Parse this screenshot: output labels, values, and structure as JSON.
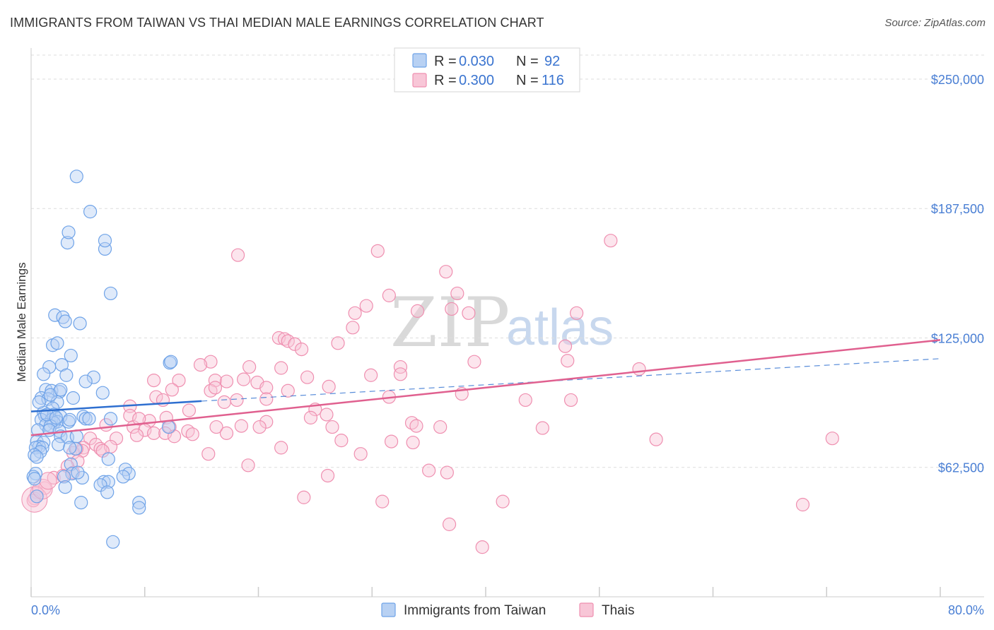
{
  "title": "IMMIGRANTS FROM TAIWAN VS THAI MEDIAN MALE EARNINGS CORRELATION CHART",
  "source": "Source: ZipAtlas.com",
  "watermark": {
    "zip": "ZIP",
    "atlas": "atlas"
  },
  "colors": {
    "taiwan": "#6fa3e8",
    "taiwan_fill": "#b8d1f3",
    "taiwan_line": "#2e6fd0",
    "thai": "#ef8fb0",
    "thai_fill": "#f8c6d7",
    "thai_line": "#e0608f",
    "tick_text": "#4a7fd4",
    "grid": "#dddddd"
  },
  "legend": {
    "r_label": "R =",
    "n_label": "N =",
    "rows": [
      {
        "series": "taiwan",
        "r": "0.030",
        "n": "92"
      },
      {
        "series": "thai",
        "r": "0.300",
        "n": "116"
      }
    ]
  },
  "chart_data": {
    "type": "scatter",
    "title": "IMMIGRANTS FROM TAIWAN VS THAI MEDIAN MALE EARNINGS CORRELATION CHART",
    "xlabel": "",
    "ylabel": "Median Male Earnings",
    "xlim": [
      0,
      80
    ],
    "ylim": [
      0,
      265000
    ],
    "x_tick_labels": [
      "0.0%",
      "80.0%"
    ],
    "y_ticks": [
      62500,
      125000,
      187500,
      250000
    ],
    "y_tick_labels": [
      "$62,500",
      "$125,000",
      "$187,500",
      "$250,000"
    ],
    "grid": true,
    "legend_position": "top-center",
    "series": [
      {
        "name": "Immigrants from Taiwan",
        "key": "taiwan",
        "r": 0.03,
        "n": 92,
        "trend": {
          "x0": 0,
          "y0": 89500,
          "x1": 15,
          "y1": 94500,
          "dashed_to_x": 80,
          "dashed_to_y": 115000
        },
        "points": [
          [
            4.0,
            203000
          ],
          [
            5.2,
            186000
          ],
          [
            3.2,
            171000
          ],
          [
            6.5,
            168000
          ],
          [
            6.5,
            172000
          ],
          [
            3.3,
            176000
          ],
          [
            7.0,
            146500
          ],
          [
            2.1,
            136000
          ],
          [
            2.8,
            135000
          ],
          [
            4.3,
            132000
          ],
          [
            3.0,
            133000
          ],
          [
            1.9,
            121500
          ],
          [
            2.3,
            122500
          ],
          [
            12.2,
            113000
          ],
          [
            12.3,
            113500
          ],
          [
            3.5,
            116500
          ],
          [
            1.6,
            111000
          ],
          [
            2.7,
            112000
          ],
          [
            1.1,
            107500
          ],
          [
            3.1,
            107000
          ],
          [
            5.5,
            106000
          ],
          [
            4.8,
            104000
          ],
          [
            1.3,
            100000
          ],
          [
            1.8,
            99500
          ],
          [
            2.5,
            99000
          ],
          [
            6.3,
            98500
          ],
          [
            0.9,
            96000
          ],
          [
            1.5,
            95500
          ],
          [
            3.7,
            96000
          ],
          [
            2.3,
            94000
          ],
          [
            1.9,
            91000
          ],
          [
            1.1,
            89000
          ],
          [
            1.2,
            87500
          ],
          [
            2.0,
            88000
          ],
          [
            2.6,
            87000
          ],
          [
            4.6,
            87000
          ],
          [
            4.8,
            86000
          ],
          [
            0.9,
            85500
          ],
          [
            1.8,
            85500
          ],
          [
            2.3,
            84500
          ],
          [
            3.3,
            84500
          ],
          [
            3.4,
            85500
          ],
          [
            2.0,
            84000
          ],
          [
            1.3,
            83000
          ],
          [
            1.7,
            82500
          ],
          [
            0.6,
            80500
          ],
          [
            1.6,
            80500
          ],
          [
            2.5,
            80000
          ],
          [
            12.1,
            82000
          ],
          [
            2.6,
            77500
          ],
          [
            3.2,
            77000
          ],
          [
            4.0,
            77500
          ],
          [
            0.5,
            75000
          ],
          [
            1.1,
            74500
          ],
          [
            2.4,
            73500
          ],
          [
            0.7,
            72500
          ],
          [
            0.4,
            72000
          ],
          [
            1.0,
            72000
          ],
          [
            3.9,
            71500
          ],
          [
            0.8,
            70000
          ],
          [
            0.3,
            68500
          ],
          [
            0.5,
            67500
          ],
          [
            3.5,
            64000
          ],
          [
            6.8,
            66500
          ],
          [
            0.4,
            59500
          ],
          [
            8.3,
            61500
          ],
          [
            3.6,
            59500
          ],
          [
            8.6,
            59500
          ],
          [
            0.2,
            58000
          ],
          [
            0.3,
            57000
          ],
          [
            2.9,
            58000
          ],
          [
            8.1,
            58000
          ],
          [
            4.5,
            57500
          ],
          [
            6.4,
            55500
          ],
          [
            6.8,
            55500
          ],
          [
            6.1,
            54000
          ],
          [
            3.0,
            53000
          ],
          [
            6.7,
            50500
          ],
          [
            9.5,
            45500
          ],
          [
            9.5,
            43000
          ],
          [
            4.4,
            45500
          ],
          [
            7.2,
            26500
          ],
          [
            0.5,
            48500
          ],
          [
            1.4,
            88000
          ],
          [
            2.2,
            86500
          ],
          [
            3.4,
            72000
          ],
          [
            5.1,
            86000
          ],
          [
            1.7,
            97500
          ],
          [
            2.6,
            100000
          ],
          [
            0.7,
            94000
          ],
          [
            4.1,
            60000
          ],
          [
            7.0,
            86000
          ]
        ]
      },
      {
        "name": "Thais",
        "key": "thai",
        "r": 0.3,
        "n": 116,
        "trend": {
          "x0": 0,
          "y0": 78000,
          "x1": 80,
          "y1": 124000
        },
        "points": [
          [
            51.0,
            172000
          ],
          [
            18.2,
            165000
          ],
          [
            30.5,
            167000
          ],
          [
            36.5,
            157000
          ],
          [
            37.5,
            146500
          ],
          [
            31.5,
            145500
          ],
          [
            29.5,
            140500
          ],
          [
            28.5,
            137000
          ],
          [
            37.0,
            139000
          ],
          [
            34.0,
            138000
          ],
          [
            48.0,
            137000
          ],
          [
            38.5,
            137000
          ],
          [
            28.3,
            130000
          ],
          [
            21.8,
            125000
          ],
          [
            22.3,
            124500
          ],
          [
            22.6,
            123500
          ],
          [
            27.0,
            122500
          ],
          [
            23.2,
            122000
          ],
          [
            47.0,
            121000
          ],
          [
            23.8,
            119500
          ],
          [
            47.2,
            114000
          ],
          [
            39.0,
            113500
          ],
          [
            15.8,
            113500
          ],
          [
            14.9,
            112000
          ],
          [
            19.2,
            111000
          ],
          [
            22.0,
            110500
          ],
          [
            32.5,
            111000
          ],
          [
            53.5,
            110000
          ],
          [
            10.8,
            104500
          ],
          [
            13.0,
            104500
          ],
          [
            16.2,
            104500
          ],
          [
            17.2,
            104000
          ],
          [
            18.7,
            105000
          ],
          [
            19.9,
            103500
          ],
          [
            20.7,
            101000
          ],
          [
            24.3,
            106000
          ],
          [
            29.9,
            107000
          ],
          [
            32.5,
            107500
          ],
          [
            12.4,
            100000
          ],
          [
            15.8,
            99500
          ],
          [
            16.2,
            101000
          ],
          [
            22.6,
            99500
          ],
          [
            26.2,
            101500
          ],
          [
            37.9,
            98000
          ],
          [
            11.0,
            96500
          ],
          [
            11.6,
            95000
          ],
          [
            17.0,
            94000
          ],
          [
            18.1,
            95000
          ],
          [
            20.7,
            95500
          ],
          [
            31.5,
            96500
          ],
          [
            43.5,
            95000
          ],
          [
            47.5,
            95000
          ],
          [
            8.7,
            92000
          ],
          [
            13.9,
            90000
          ],
          [
            25.0,
            90500
          ],
          [
            26.0,
            88000
          ],
          [
            8.7,
            87500
          ],
          [
            11.9,
            86500
          ],
          [
            24.6,
            86500
          ],
          [
            10.4,
            85000
          ],
          [
            20.7,
            84500
          ],
          [
            33.5,
            84000
          ],
          [
            6.6,
            83000
          ],
          [
            9.0,
            82000
          ],
          [
            12.2,
            82000
          ],
          [
            13.8,
            80000
          ],
          [
            16.3,
            82000
          ],
          [
            18.5,
            82500
          ],
          [
            20.1,
            82000
          ],
          [
            26.5,
            82000
          ],
          [
            33.9,
            82500
          ],
          [
            36.0,
            82000
          ],
          [
            45.0,
            81500
          ],
          [
            10.0,
            80500
          ],
          [
            10.8,
            79000
          ],
          [
            11.8,
            79000
          ],
          [
            9.3,
            78000
          ],
          [
            14.2,
            78500
          ],
          [
            17.2,
            79000
          ],
          [
            5.2,
            76500
          ],
          [
            7.5,
            76500
          ],
          [
            12.6,
            77500
          ],
          [
            27.3,
            75500
          ],
          [
            31.7,
            75000
          ],
          [
            33.6,
            74500
          ],
          [
            55.0,
            76000
          ],
          [
            70.5,
            76500
          ],
          [
            5.7,
            73500
          ],
          [
            6.1,
            71500
          ],
          [
            7.0,
            72500
          ],
          [
            4.6,
            72000
          ],
          [
            4.5,
            70500
          ],
          [
            3.7,
            69500
          ],
          [
            4.0,
            71500
          ],
          [
            15.6,
            69000
          ],
          [
            29.0,
            69000
          ],
          [
            4.1,
            65500
          ],
          [
            19.1,
            63500
          ],
          [
            3.2,
            63000
          ],
          [
            3.7,
            60000
          ],
          [
            2.0,
            57500
          ],
          [
            35.0,
            61000
          ],
          [
            36.6,
            60000
          ],
          [
            26.1,
            58500
          ],
          [
            1.2,
            52500
          ],
          [
            0.5,
            50500
          ],
          [
            0.3,
            47500
          ],
          [
            0.2,
            46500
          ],
          [
            24.0,
            48000
          ],
          [
            30.9,
            46000
          ],
          [
            41.5,
            46000
          ],
          [
            67.9,
            44500
          ],
          [
            36.8,
            35000
          ],
          [
            39.7,
            24000
          ],
          [
            2.8,
            58500
          ],
          [
            6.3,
            70500
          ],
          [
            9.5,
            86000
          ],
          [
            22.0,
            72000
          ]
        ]
      }
    ]
  },
  "bottom_legend": {
    "items": [
      {
        "series": "taiwan",
        "label": "Immigrants from Taiwan"
      },
      {
        "series": "thai",
        "label": "Thais"
      }
    ]
  }
}
